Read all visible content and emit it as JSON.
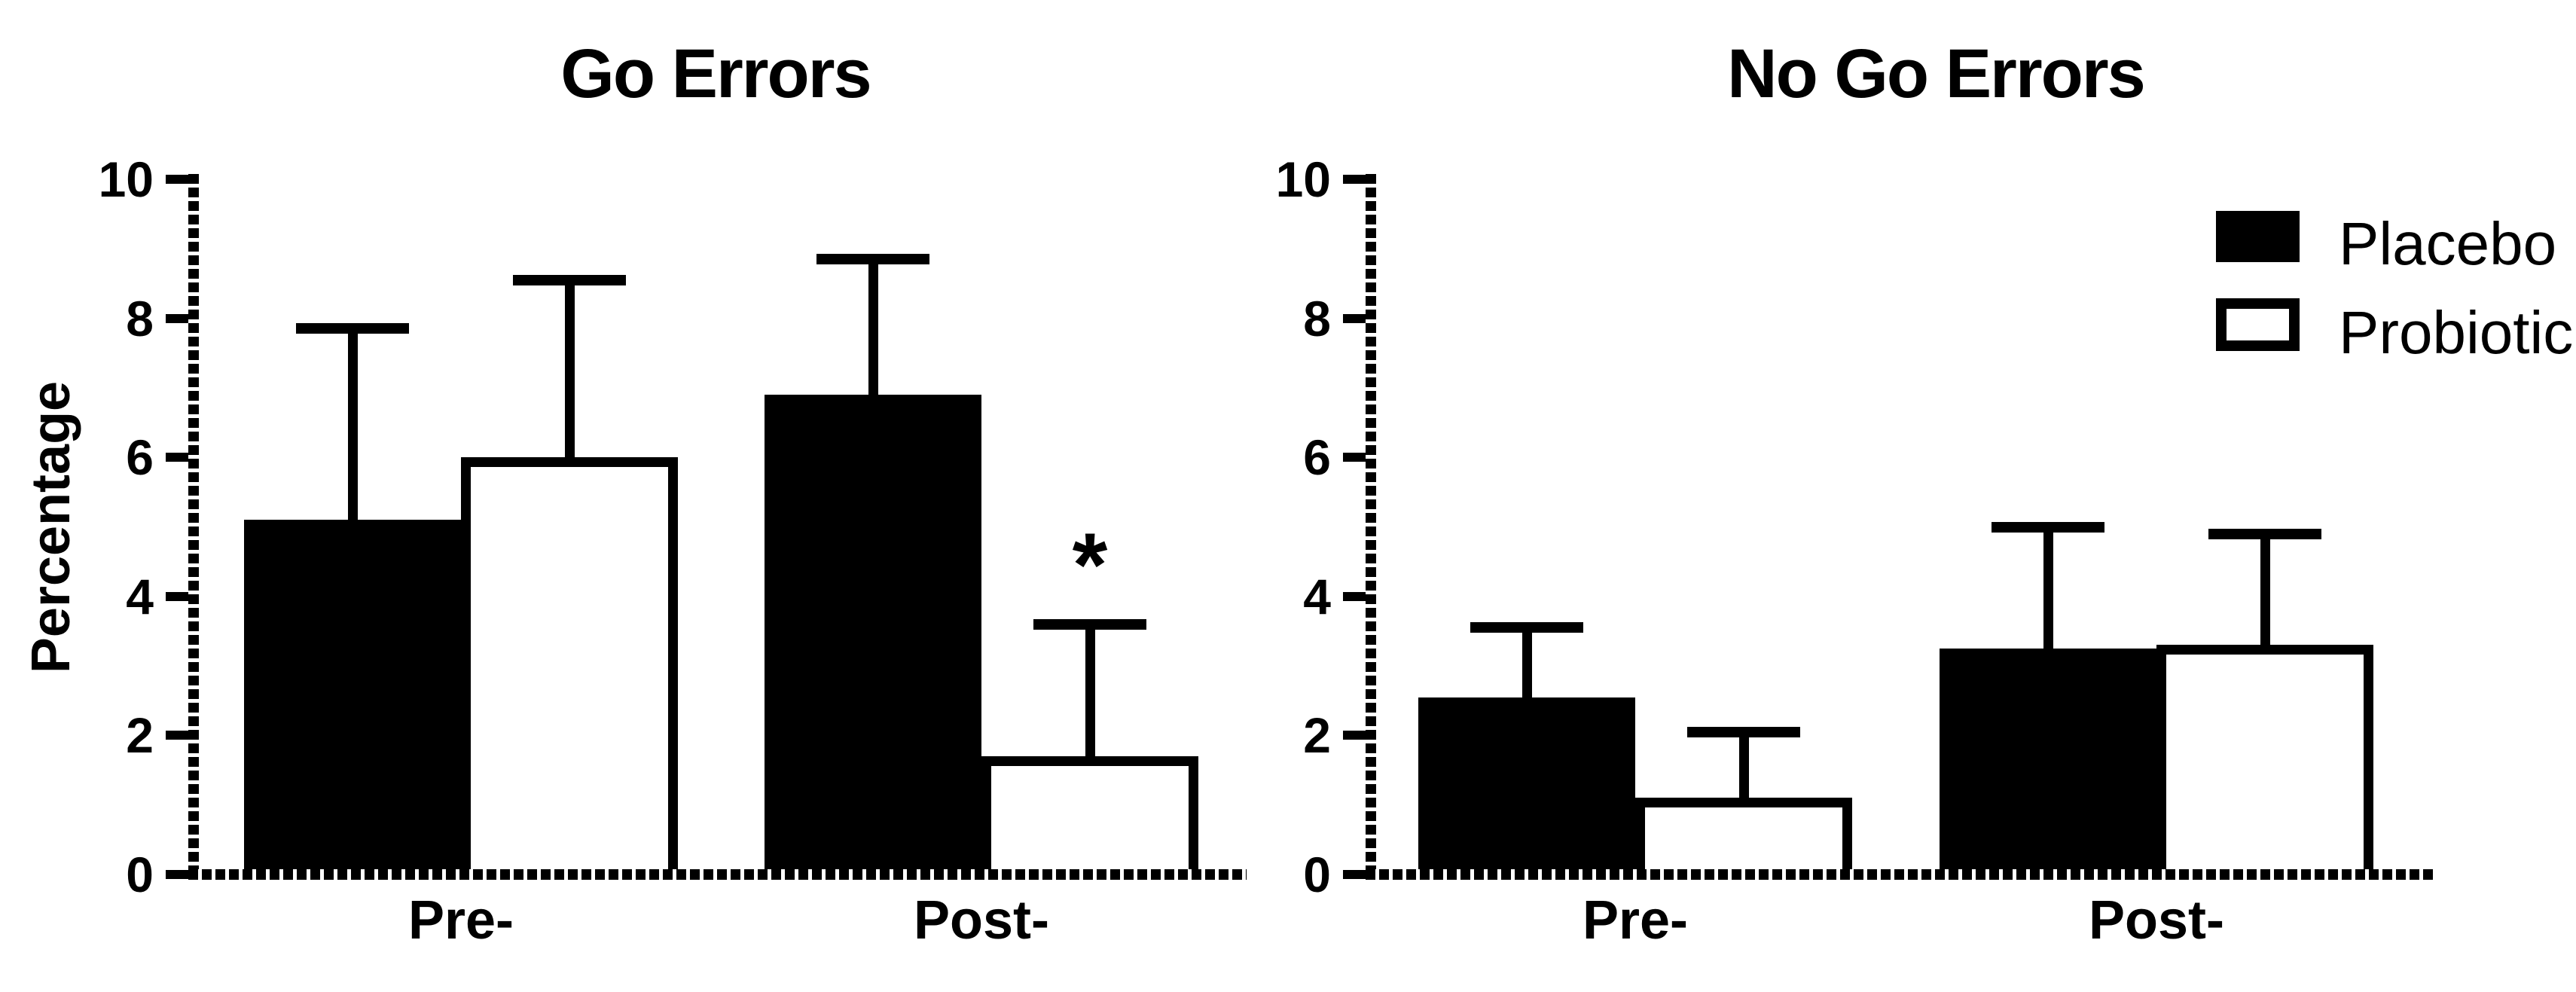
{
  "figure": {
    "y_axis_label": "Percentage",
    "background_color": "#ffffff",
    "ink_color": "#000000",
    "legend": {
      "position": "top-right",
      "items": [
        {
          "label": "Placebo",
          "fill": "#000000",
          "swatch": "filled-rectangle"
        },
        {
          "label": "Probiotic",
          "fill": "#ffffff",
          "swatch": "open-rectangle"
        }
      ]
    }
  },
  "chart_data": [
    {
      "type": "bar",
      "title": "Go Errors",
      "categories": [
        "Pre-",
        "Post-"
      ],
      "xlabel": "",
      "ylabel": "Percentage",
      "ylim": [
        0,
        10
      ],
      "yticks": [
        0,
        2,
        4,
        6,
        8,
        10
      ],
      "grid": false,
      "error_bars": "upper-only",
      "series": [
        {
          "name": "Placebo",
          "fill": "#000000",
          "values": [
            5.1,
            6.9
          ],
          "error_bar_tops": [
            7.85,
            8.85
          ]
        },
        {
          "name": "Probiotic",
          "fill": "#ffffff",
          "values": [
            6.0,
            1.7
          ],
          "error_bar_tops": [
            8.55,
            3.6
          ]
        }
      ],
      "annotations": [
        {
          "text": "*",
          "category": "Post-",
          "series": "Probiotic"
        }
      ]
    },
    {
      "type": "bar",
      "title": "No Go Errors",
      "categories": [
        "Pre-",
        "Post-"
      ],
      "xlabel": "",
      "ylabel": "",
      "ylim": [
        0,
        10
      ],
      "yticks": [
        0,
        2,
        4,
        6,
        8,
        10
      ],
      "grid": false,
      "error_bars": "upper-only",
      "legend_position": "top-right",
      "series": [
        {
          "name": "Placebo",
          "fill": "#000000",
          "values": [
            2.55,
            3.25
          ],
          "error_bar_tops": [
            3.55,
            5.0
          ]
        },
        {
          "name": "Probiotic",
          "fill": "#ffffff",
          "values": [
            1.1,
            3.3
          ],
          "error_bar_tops": [
            2.05,
            4.9
          ]
        }
      ],
      "annotations": []
    }
  ]
}
